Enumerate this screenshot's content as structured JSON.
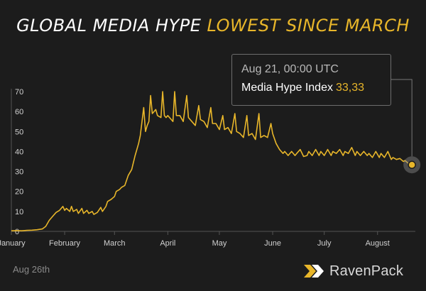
{
  "title": {
    "part1": "GLOBAL MEDIA HYPE ",
    "part2": "LOWEST SINCE MARCH"
  },
  "tooltip": {
    "date": "Aug  21, 00:00 UTC",
    "label": "Media Hype Index",
    "value": "33,33"
  },
  "footer": {
    "date": "Aug 26th",
    "brand": "RavenPack",
    "logo_icon": "ravenpack-chevron-icon"
  },
  "colors": {
    "background": "#1c1c1c",
    "line": "#e8b62a",
    "accent": "#e8b62a",
    "text": "#ffffff",
    "axis_text": "#d0d0d0"
  },
  "chart_data": {
    "type": "line",
    "title": "GLOBAL MEDIA HYPE LOWEST SINCE MARCH",
    "xlabel": "",
    "ylabel": "",
    "ylim": [
      0,
      70
    ],
    "yticks": [
      0,
      10,
      20,
      30,
      40,
      50,
      60,
      70
    ],
    "xlim": [
      "2020-01-01",
      "2020-08-23"
    ],
    "grid": false,
    "month_ticks": [
      {
        "label": "January",
        "date": "2020-01-01"
      },
      {
        "label": "February",
        "date": "2020-02-01"
      },
      {
        "label": "March",
        "date": "2020-03-01"
      },
      {
        "label": "April",
        "date": "2020-04-01"
      },
      {
        "label": "May",
        "date": "2020-05-01"
      },
      {
        "label": "June",
        "date": "2020-06-01"
      },
      {
        "label": "July",
        "date": "2020-07-01"
      },
      {
        "label": "August",
        "date": "2020-08-01"
      }
    ],
    "highlight": {
      "date": "2020-08-21",
      "value": 33.33
    },
    "series": [
      {
        "values": [
          [
            "2020-01-01",
            0.3
          ],
          [
            "2020-01-04",
            0.4
          ],
          [
            "2020-01-07",
            0.3
          ],
          [
            "2020-01-10",
            0.5
          ],
          [
            "2020-01-13",
            0.6
          ],
          [
            "2020-01-16",
            0.8
          ],
          [
            "2020-01-19",
            1.2
          ],
          [
            "2020-01-21",
            2.5
          ],
          [
            "2020-01-23",
            5.5
          ],
          [
            "2020-01-25",
            7.5
          ],
          [
            "2020-01-27",
            9.5
          ],
          [
            "2020-01-29",
            10.5
          ],
          [
            "2020-01-31",
            12.5
          ],
          [
            "2020-02-01",
            10.5
          ],
          [
            "2020-02-02",
            11.5
          ],
          [
            "2020-02-04",
            10.0
          ],
          [
            "2020-02-05",
            12.5
          ],
          [
            "2020-02-06",
            10.0
          ],
          [
            "2020-02-08",
            11.0
          ],
          [
            "2020-02-09",
            9.0
          ],
          [
            "2020-02-11",
            11.5
          ],
          [
            "2020-02-12",
            9.0
          ],
          [
            "2020-02-14",
            10.5
          ],
          [
            "2020-02-15",
            9.0
          ],
          [
            "2020-02-17",
            10.0
          ],
          [
            "2020-02-18",
            8.5
          ],
          [
            "2020-02-20",
            9.5
          ],
          [
            "2020-02-22",
            12.0
          ],
          [
            "2020-02-23",
            10.0
          ],
          [
            "2020-02-25",
            12.5
          ],
          [
            "2020-02-26",
            15.0
          ],
          [
            "2020-02-28",
            16.0
          ],
          [
            "2020-03-01",
            17.5
          ],
          [
            "2020-03-02",
            20.0
          ],
          [
            "2020-03-04",
            21.0
          ],
          [
            "2020-03-05",
            22.0
          ],
          [
            "2020-03-07",
            23.0
          ],
          [
            "2020-03-09",
            28.0
          ],
          [
            "2020-03-11",
            31.0
          ],
          [
            "2020-03-13",
            38.0
          ],
          [
            "2020-03-15",
            44.0
          ],
          [
            "2020-03-16",
            48.0
          ],
          [
            "2020-03-17",
            55.0
          ],
          [
            "2020-03-18",
            62.0
          ],
          [
            "2020-03-19",
            50.0
          ],
          [
            "2020-03-20",
            53.0
          ],
          [
            "2020-03-21",
            55.0
          ],
          [
            "2020-03-22",
            68.0
          ],
          [
            "2020-03-23",
            59.0
          ],
          [
            "2020-03-24",
            60.0
          ],
          [
            "2020-03-25",
            61.0
          ],
          [
            "2020-03-26",
            58.0
          ],
          [
            "2020-03-28",
            57.0
          ],
          [
            "2020-03-29",
            70.0
          ],
          [
            "2020-03-30",
            58.0
          ],
          [
            "2020-03-31",
            57.0
          ],
          [
            "2020-04-01",
            58.0
          ],
          [
            "2020-04-03",
            56.0
          ],
          [
            "2020-04-04",
            55.0
          ],
          [
            "2020-04-05",
            70.0
          ],
          [
            "2020-04-06",
            58.0
          ],
          [
            "2020-04-08",
            58.0
          ],
          [
            "2020-04-10",
            55.0
          ],
          [
            "2020-04-12",
            68.0
          ],
          [
            "2020-04-13",
            57.0
          ],
          [
            "2020-04-15",
            55.0
          ],
          [
            "2020-04-17",
            53.0
          ],
          [
            "2020-04-19",
            63.0
          ],
          [
            "2020-04-20",
            56.0
          ],
          [
            "2020-04-22",
            55.0
          ],
          [
            "2020-04-24",
            52.0
          ],
          [
            "2020-04-26",
            62.0
          ],
          [
            "2020-04-27",
            54.0
          ],
          [
            "2020-04-29",
            54.0
          ],
          [
            "2020-05-01",
            51.0
          ],
          [
            "2020-05-03",
            58.0
          ],
          [
            "2020-05-04",
            51.0
          ],
          [
            "2020-05-06",
            52.0
          ],
          [
            "2020-05-08",
            49.0
          ],
          [
            "2020-05-10",
            59.0
          ],
          [
            "2020-05-11",
            50.0
          ],
          [
            "2020-05-13",
            49.0
          ],
          [
            "2020-05-15",
            47.0
          ],
          [
            "2020-05-17",
            58.0
          ],
          [
            "2020-05-18",
            48.0
          ],
          [
            "2020-05-20",
            49.0
          ],
          [
            "2020-05-22",
            46.0
          ],
          [
            "2020-05-24",
            59.0
          ],
          [
            "2020-05-25",
            47.0
          ],
          [
            "2020-05-27",
            48.0
          ],
          [
            "2020-05-29",
            47.0
          ],
          [
            "2020-05-31",
            54.0
          ],
          [
            "2020-06-01",
            49.0
          ],
          [
            "2020-06-03",
            44.0
          ],
          [
            "2020-06-05",
            41.0
          ],
          [
            "2020-06-07",
            39.0
          ],
          [
            "2020-06-08",
            40.0
          ],
          [
            "2020-06-10",
            38.0
          ],
          [
            "2020-06-12",
            40.0
          ],
          [
            "2020-06-14",
            38.0
          ],
          [
            "2020-06-15",
            39.0
          ],
          [
            "2020-06-17",
            41.0
          ],
          [
            "2020-06-19",
            37.5
          ],
          [
            "2020-06-21",
            38.0
          ],
          [
            "2020-06-22",
            40.0
          ],
          [
            "2020-06-24",
            38.0
          ],
          [
            "2020-06-26",
            41.0
          ],
          [
            "2020-06-28",
            38.0
          ],
          [
            "2020-06-29",
            40.0
          ],
          [
            "2020-07-01",
            38.0
          ],
          [
            "2020-07-03",
            41.0
          ],
          [
            "2020-07-05",
            38.0
          ],
          [
            "2020-07-06",
            40.0
          ],
          [
            "2020-07-08",
            39.0
          ],
          [
            "2020-07-10",
            41.0
          ],
          [
            "2020-07-12",
            38.0
          ],
          [
            "2020-07-13",
            40.0
          ],
          [
            "2020-07-15",
            39.0
          ],
          [
            "2020-07-17",
            42.0
          ],
          [
            "2020-07-19",
            38.0
          ],
          [
            "2020-07-20",
            40.0
          ],
          [
            "2020-07-22",
            38.0
          ],
          [
            "2020-07-24",
            40.0
          ],
          [
            "2020-07-26",
            38.0
          ],
          [
            "2020-07-27",
            39.0
          ],
          [
            "2020-07-29",
            37.0
          ],
          [
            "2020-07-31",
            40.0
          ],
          [
            "2020-08-02",
            37.0
          ],
          [
            "2020-08-03",
            39.0
          ],
          [
            "2020-08-05",
            37.0
          ],
          [
            "2020-08-07",
            40.0
          ],
          [
            "2020-08-09",
            36.0
          ],
          [
            "2020-08-10",
            37.0
          ],
          [
            "2020-08-12",
            36.0
          ],
          [
            "2020-08-14",
            36.5
          ],
          [
            "2020-08-16",
            35.0
          ],
          [
            "2020-08-17",
            35.5
          ],
          [
            "2020-08-19",
            34.0
          ],
          [
            "2020-08-21",
            33.33
          ],
          [
            "2020-08-23",
            34.5
          ]
        ]
      }
    ]
  }
}
